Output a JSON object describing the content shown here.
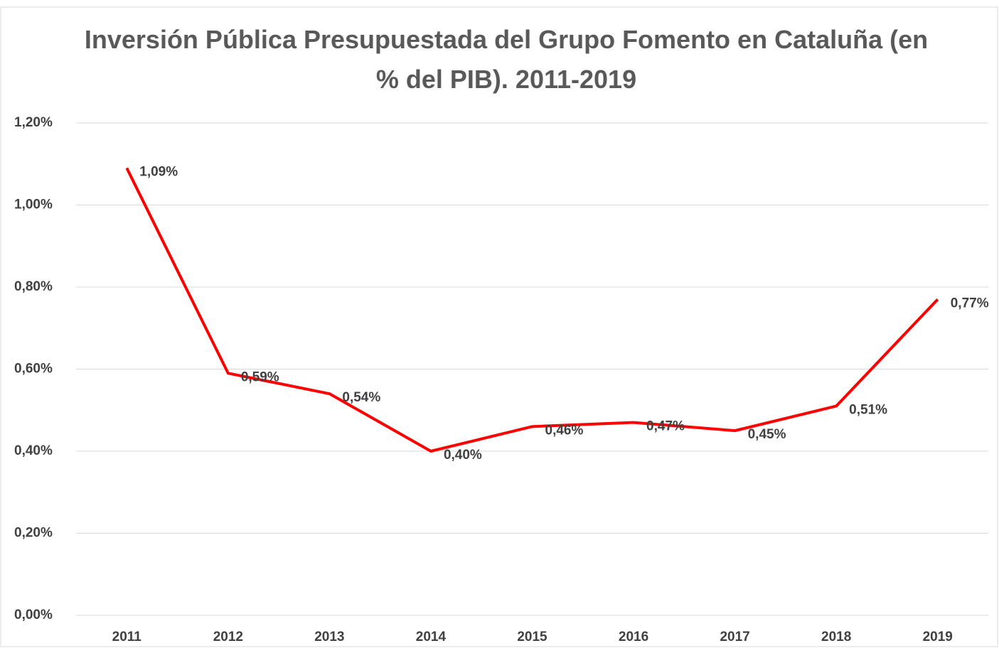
{
  "chart_data": {
    "type": "line",
    "title": "Inversión Pública Presupuestada del Grupo Fomento en Cataluña (en % del PIB). 2011-2019",
    "categories": [
      "2011",
      "2012",
      "2013",
      "2014",
      "2015",
      "2016",
      "2017",
      "2018",
      "2019"
    ],
    "series": [
      {
        "name": "Inversión Pública",
        "color": "#ff0000",
        "values": [
          1.09,
          0.59,
          0.54,
          0.4,
          0.46,
          0.47,
          0.45,
          0.51,
          0.77
        ],
        "value_labels": [
          "1,09%",
          "0,59%",
          "0,54%",
          "0,40%",
          "0,46%",
          "0,47%",
          "0,45%",
          "0,51%",
          "0,77%"
        ]
      }
    ],
    "ylim": [
      0,
      1.2
    ],
    "yticks": [
      {
        "value": 0,
        "label": "0,00%"
      },
      {
        "value": 0.2,
        "label": "0,20%"
      },
      {
        "value": 0.4,
        "label": "0,40%"
      },
      {
        "value": 0.6,
        "label": "0,60%"
      },
      {
        "value": 0.8,
        "label": "0,80%"
      },
      {
        "value": 1.0,
        "label": "1,00%"
      },
      {
        "value": 1.2,
        "label": "1,20%"
      }
    ],
    "grid": true
  }
}
